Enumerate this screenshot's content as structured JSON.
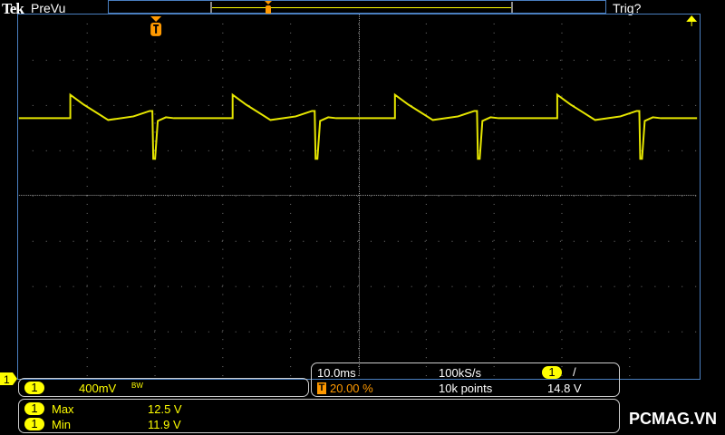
{
  "header": {
    "brand": "Tek",
    "mode": "PreVu",
    "trigger_status": "Trig?"
  },
  "colors": {
    "channel1": "#ffff00",
    "trigger": "#ff9900",
    "grid": "#888888",
    "frame": "#4a7fc0"
  },
  "icons": {
    "trigger_marker": "T-flag-icon",
    "trigger_level": "up-arrow-icon",
    "ground_marker": "channel-1-marker"
  },
  "channel": {
    "number": "1",
    "scale": "400mV",
    "bandwidth_limit": "BW"
  },
  "timebase": {
    "scale": "10.0ms",
    "sample_rate": "100kS/s",
    "trigger_position_icon": "T",
    "trigger_position": "20.00 %",
    "record_length": "10k points",
    "trigger_source": "1",
    "trigger_slope": "/",
    "trigger_level": "14.8 V"
  },
  "measurements": [
    {
      "channel": "1",
      "label": "Max",
      "value": "12.5 V"
    },
    {
      "channel": "1",
      "label": "Min",
      "value": "11.9 V"
    }
  ],
  "watermark": "PCMAG.VN"
}
